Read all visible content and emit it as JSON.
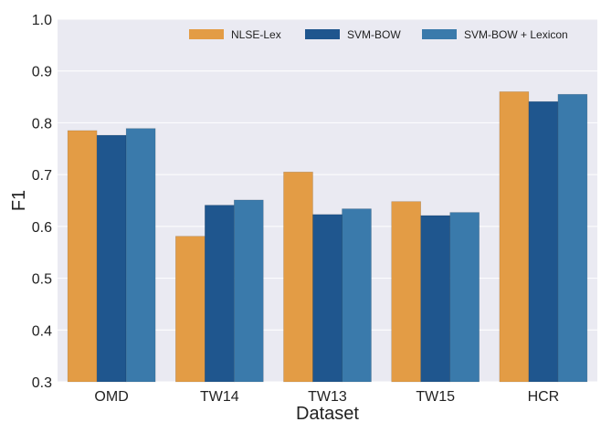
{
  "chart_data": {
    "type": "bar",
    "title": "",
    "xlabel": "Dataset",
    "ylabel": "F1",
    "categories": [
      "OMD",
      "TW14",
      "TW13",
      "TW15",
      "HCR"
    ],
    "series": [
      {
        "name": "NLSE-Lex",
        "color": "#e39c45",
        "values": [
          0.785,
          0.581,
          0.705,
          0.648,
          0.86
        ]
      },
      {
        "name": "SVM-BOW",
        "color": "#1f568e",
        "values": [
          0.776,
          0.641,
          0.623,
          0.621,
          0.841
        ]
      },
      {
        "name": "SVM-BOW + Lexicon",
        "color": "#3a7aab",
        "values": [
          0.789,
          0.651,
          0.634,
          0.627,
          0.855
        ]
      }
    ],
    "ylim": [
      0.3,
      1.0
    ],
    "yticks": [
      "0.3",
      "0.4",
      "0.5",
      "0.6",
      "0.7",
      "0.8",
      "0.9",
      "1.0"
    ],
    "grid": true,
    "legend_position": "top-right",
    "background_color": "#eaeaf2",
    "grid_color": "#ffffff"
  }
}
